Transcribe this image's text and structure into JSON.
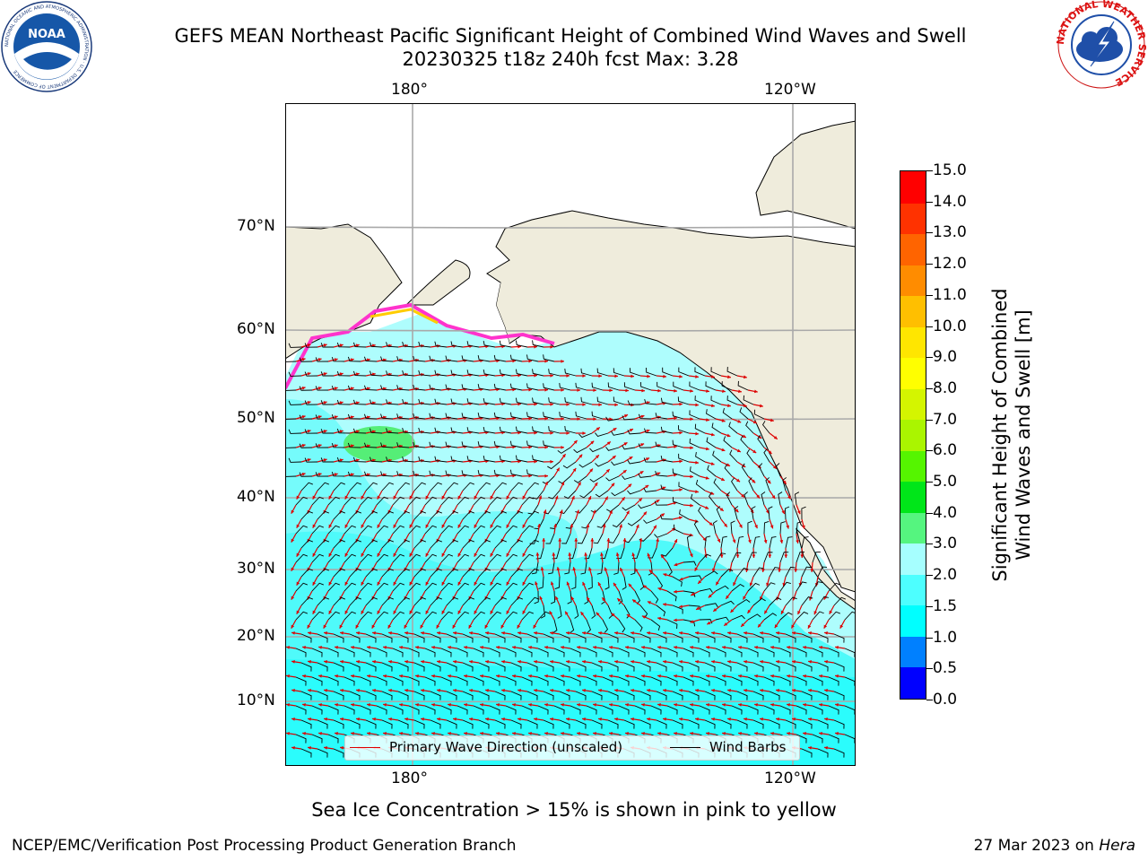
{
  "header": {
    "title_line1": "GEFS MEAN Northeast Pacific Significant Height of Combined Wind Waves and Swell",
    "title_line2": "20230325 t18z 240h fcst   Max: 3.28",
    "noaa_logo_text": "NOAA",
    "noaa_ring_text": "NATIONAL OCEANIC AND ATMOSPHERIC ADMINISTRATION · U.S. DEPARTMENT OF COMMERCE",
    "nws_ring_text": "NATIONAL WEATHER SERVICE"
  },
  "map": {
    "top_lon_labels": [
      "180°",
      "120°W"
    ],
    "bottom_lon_labels": [
      "180°",
      "120°W"
    ],
    "lat_labels": [
      "70°N",
      "60°N",
      "50°N",
      "40°N",
      "30°N",
      "20°N",
      "10°N"
    ],
    "colors": {
      "ocean": "#aefdfd",
      "ocean_mid": "#4ffafa",
      "ocean_low": "#00ffff",
      "land": "#efecdc",
      "high": "#55ee77",
      "arrow": "#dd0000",
      "barb": "#000000",
      "ice": "#ff33cc"
    }
  },
  "legend": {
    "primary_wave": "Primary Wave Direction (unscaled)",
    "wind_barbs": "Wind Barbs",
    "primary_wave_color": "#dd0000",
    "wind_barbs_color": "#000000"
  },
  "colorbar": {
    "label_line1": "Significant Height of Combined",
    "label_line2": "Wind Waves and Swell [m]",
    "ticks": [
      "0.0",
      "0.5",
      "1.0",
      "1.5",
      "2.0",
      "3.0",
      "4.0",
      "5.0",
      "6.0",
      "7.0",
      "8.0",
      "9.0",
      "10.0",
      "11.0",
      "12.0",
      "13.0",
      "14.0",
      "15.0"
    ],
    "colors": [
      "#0000ff",
      "#0080ff",
      "#00ffff",
      "#4dffff",
      "#a6ffff",
      "#55f57f",
      "#00e619",
      "#55f500",
      "#aaf500",
      "#d4f500",
      "#ffff00",
      "#ffe600",
      "#ffbf00",
      "#ff8c00",
      "#ff6400",
      "#ff3200",
      "#ff0000"
    ]
  },
  "footer": {
    "sea_ice_note": "Sea Ice Concentration > 15% is shown in pink to yellow",
    "credit": "NCEP/EMC/Verification Post Processing Product Generation Branch",
    "date": "27 Mar 2023 on",
    "host": "Hera"
  }
}
